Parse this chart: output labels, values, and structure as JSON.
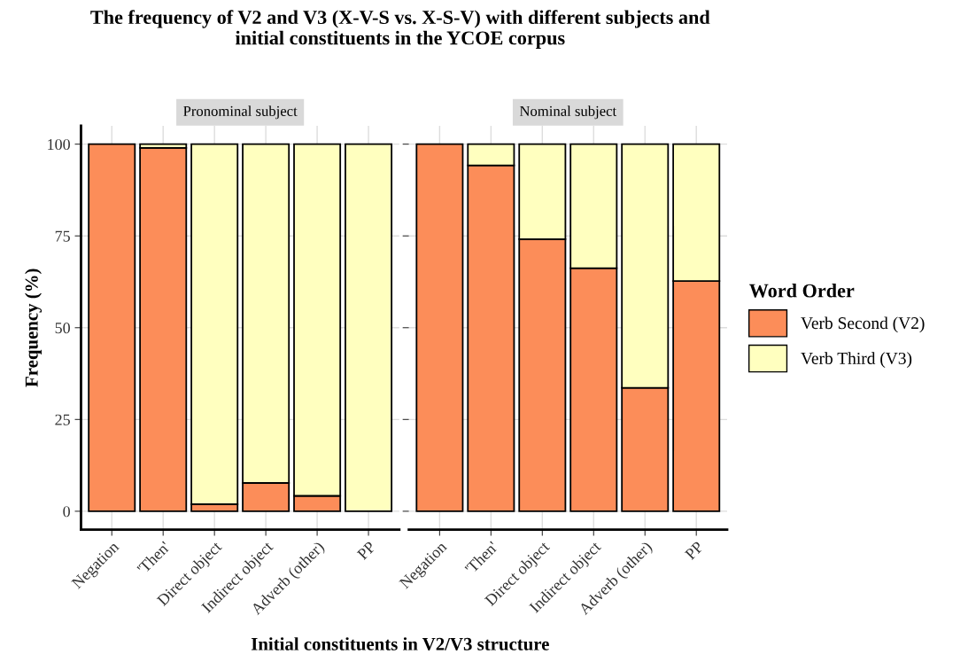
{
  "chart_data": [
    {
      "type": "bar",
      "stacked": true,
      "title": "Pronominal subject",
      "annotations": [
        "The frequency of V2 and V3 (X-V-S vs. X-S-V) with different subjects and\ninitial constituents in the YCOE corpus"
      ],
      "xlabel": "Initial constituents in V2/V3 structure",
      "ylabel": "Frequency (%)",
      "categories": [
        "Negation",
        "'Then'",
        "Direct object",
        "Indirect object",
        "Adverb (other)",
        "PP"
      ],
      "series": [
        {
          "color": "#fc8d59",
          "values": [
            100,
            99,
            1.9,
            7.7,
            4.2,
            null
          ]
        },
        {
          "color": "#ffffbf",
          "values": [
            null,
            1,
            98.1,
            92.3,
            95.8,
            100
          ]
        }
      ],
      "ylim": [
        -5,
        105
      ],
      "yticks": [
        0,
        25,
        50,
        75,
        100
      ],
      "grid": true
    },
    {
      "type": "bar",
      "stacked": true,
      "title": "Nominal subject",
      "legend_title": "Word Order",
      "categories": [
        "Negation",
        "'Then'",
        "Direct object",
        "Indirect object",
        "Adverb (other)",
        "PP"
      ],
      "series": [
        {
          "name": "Verb Second (V2)",
          "color": "#fc8d59",
          "values": [
            100,
            94.2,
            74.1,
            66.2,
            33.6,
            62.7
          ]
        },
        {
          "name": "Verb Third (V3)",
          "color": "#ffffbf",
          "values": [
            null,
            5.8,
            25.9,
            33.8,
            66.4,
            37.3
          ]
        }
      ],
      "ylim": [
        -5,
        105
      ],
      "yticks": [
        0,
        25,
        50,
        75,
        100
      ],
      "grid": true,
      "tick_labels": "x",
      "legend": "right"
    }
  ]
}
